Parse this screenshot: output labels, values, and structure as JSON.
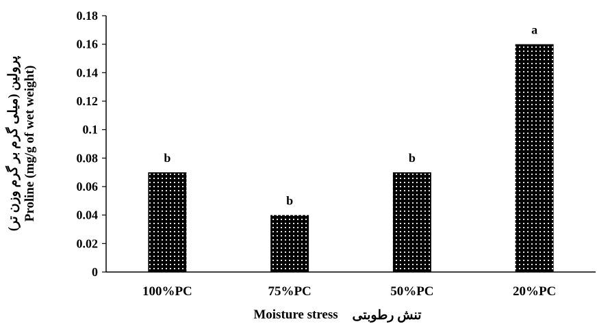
{
  "chart_data": {
    "type": "bar",
    "categories": [
      "100%PC",
      "75%PC",
      "50%PC",
      "20%PC"
    ],
    "values": [
      0.07,
      0.04,
      0.07,
      0.16
    ],
    "significance_labels": [
      "b",
      "b",
      "b",
      "a"
    ],
    "ylim": [
      0,
      0.18
    ],
    "yticks": [
      0,
      0.02,
      0.04,
      0.06,
      0.08,
      0.1,
      0.12,
      0.14,
      0.16,
      0.18
    ],
    "ytick_labels": [
      "0",
      "0.02",
      "0.04",
      "0.06",
      "0.08",
      "0.1",
      "0.12",
      "0.14",
      "0.16",
      "0.18"
    ],
    "xlabel_en": "Moisture stress",
    "xlabel_fa": "تنش رطوبتی",
    "ylabel_en": "Proline (mg/g of wet weight)",
    "ylabel_fa": "پرولین (میلی گرم بر گرم وزن تر)",
    "grid": false,
    "legend": "none",
    "bar_fill": "#000000",
    "bar_pattern": "white-dots"
  }
}
